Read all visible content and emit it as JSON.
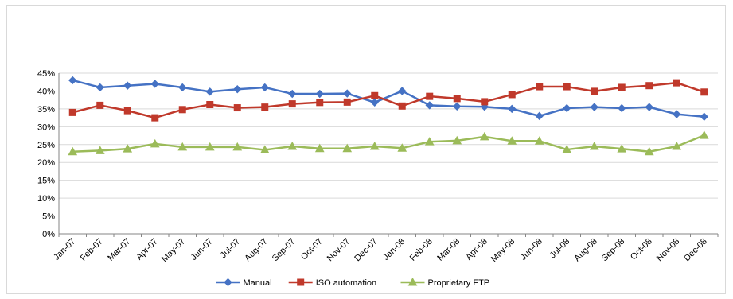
{
  "chart_data": {
    "type": "line",
    "categories": [
      "Jan-07",
      "Feb-07",
      "Mar-07",
      "Apr-07",
      "May-07",
      "Jun-07",
      "Jul-07",
      "Aug-07",
      "Sep-07",
      "Oct-07",
      "Nov-07",
      "Dec-07",
      "Jan-08",
      "Feb-08",
      "Mar-08",
      "Apr-08",
      "May-08",
      "Jun-08",
      "Jul-08",
      "Aug-08",
      "Sep-08",
      "Oct-08",
      "Nov-08",
      "Dec-08"
    ],
    "series": [
      {
        "name": "Manual",
        "color": "#4572c4",
        "marker": "diamond",
        "values": [
          43,
          41,
          41.5,
          42,
          41,
          39.8,
          40.5,
          41,
          39.2,
          39.2,
          39.3,
          36.8,
          40,
          36,
          35.7,
          35.6,
          35,
          33,
          35.2,
          35.5,
          35.2,
          35.5,
          33.5,
          32.8
        ]
      },
      {
        "name": "ISO automation",
        "color": "#c0392b",
        "marker": "square",
        "values": [
          34,
          36,
          34.5,
          32.5,
          34.8,
          36.2,
          35.3,
          35.5,
          36.4,
          36.8,
          36.9,
          38.7,
          35.8,
          38.5,
          37.9,
          37,
          39,
          41.2,
          41.2,
          39.9,
          41,
          41.5,
          42.3,
          39.7
        ]
      },
      {
        "name": "Proprietary FTP",
        "color": "#9bbb59",
        "marker": "triangle",
        "values": [
          23,
          23.3,
          23.8,
          25.2,
          24.3,
          24.3,
          24.3,
          23.5,
          24.5,
          23.9,
          23.9,
          24.5,
          24,
          25.8,
          26.1,
          27.2,
          26,
          26,
          23.6,
          24.5,
          23.8,
          23,
          24.5,
          27.6
        ]
      }
    ],
    "yticks": [
      "0%",
      "5%",
      "10%",
      "15%",
      "20%",
      "25%",
      "30%",
      "35%",
      "40%",
      "45%"
    ],
    "ylim": [
      0,
      45
    ],
    "grid": true,
    "legend": "bottom"
  }
}
